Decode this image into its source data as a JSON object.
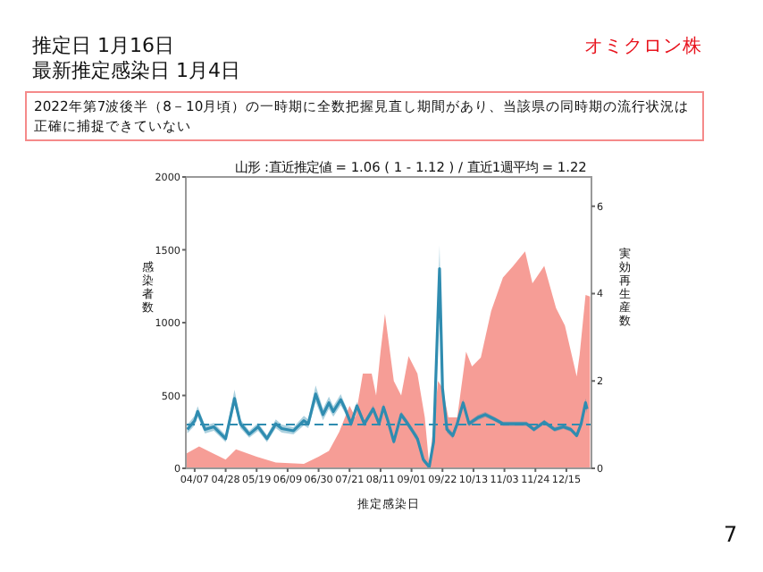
{
  "chart_data": {
    "type": "area",
    "title": "山形 :直近推定値 = 1.06 ( 1 - 1.12 ) / 直近1週平均 = 1.22",
    "xlabel": "推定感染日",
    "ylabel": "感染者数",
    "y2label": "実効再生産数",
    "annotations": [
      "推定日  1月16日",
      "最新推定感染日  1月4日",
      "オミクロン株",
      "2022年第7波後半（8－10月頃）の一時期に全数把握見直し期間があり、当該県の同時期の流行状況は正確に捕捉できていない",
      "7"
    ],
    "xlim": [
      "2022-04-01",
      "2023-01-01"
    ],
    "xticks": [
      {
        "value": "2022-04-07",
        "label": "04/07"
      },
      {
        "value": "2022-04-28",
        "label": "04/28"
      },
      {
        "value": "2022-05-19",
        "label": "05/19"
      },
      {
        "value": "2022-06-09",
        "label": "06/09"
      },
      {
        "value": "2022-06-30",
        "label": "06/30"
      },
      {
        "value": "2022-07-21",
        "label": "07/21"
      },
      {
        "value": "2022-08-11",
        "label": "08/11"
      },
      {
        "value": "2022-09-01",
        "label": "09/01"
      },
      {
        "value": "2022-09-22",
        "label": "09/22"
      },
      {
        "value": "2022-10-13",
        "label": "10/13"
      },
      {
        "value": "2022-11-03",
        "label": "11/03"
      },
      {
        "value": "2022-11-24",
        "label": "11/24"
      },
      {
        "value": "2022-12-15",
        "label": "12/15"
      }
    ],
    "ylim": [
      0,
      2000
    ],
    "yticks": [
      0,
      500,
      1000,
      1500,
      2000
    ],
    "y2lim": [
      0,
      6.67
    ],
    "y2ticks": [
      0,
      2,
      4,
      6
    ],
    "ref_lines": [
      {
        "axis": "y2",
        "value": 1,
        "color": "#2f8cb0",
        "line_style": "dashed"
      }
    ],
    "series": [
      {
        "color": "#f58c84",
        "x": [
          "2022-04-01",
          "2022-04-10",
          "2022-04-20",
          "2022-04-28",
          "2022-05-05",
          "2022-05-19",
          "2022-06-01",
          "2022-06-20",
          "2022-06-30",
          "2022-07-07",
          "2022-07-14",
          "2022-07-21",
          "2022-07-25",
          "2022-07-30",
          "2022-08-05",
          "2022-08-08",
          "2022-08-11",
          "2022-08-14",
          "2022-08-20",
          "2022-08-25",
          "2022-08-30",
          "2022-09-05",
          "2022-09-10",
          "2022-09-13",
          "2022-09-16",
          "2022-09-19",
          "2022-09-22",
          "2022-09-26",
          "2022-10-02",
          "2022-10-08",
          "2022-10-12",
          "2022-10-18",
          "2022-10-25",
          "2022-11-02",
          "2022-11-09",
          "2022-11-17",
          "2022-11-22",
          "2022-11-30",
          "2022-12-08",
          "2022-12-14",
          "2022-12-22",
          "2022-12-24",
          "2022-12-28",
          "2022-12-31"
        ],
        "values": [
          100,
          150,
          100,
          60,
          130,
          80,
          40,
          30,
          80,
          120,
          250,
          430,
          350,
          650,
          650,
          500,
          800,
          1060,
          600,
          500,
          770,
          650,
          350,
          20,
          300,
          600,
          550,
          350,
          350,
          800,
          700,
          760,
          1080,
          1310,
          1390,
          1490,
          1270,
          1390,
          1100,
          980,
          630,
          780,
          1190,
          1180
        ]
      },
      {
        "type": "line",
        "axis": "y2",
        "color": "#2f8cb0",
        "x": [
          "2022-04-02",
          "2022-04-07",
          "2022-04-09",
          "2022-04-14",
          "2022-04-20",
          "2022-04-28",
          "2022-05-04",
          "2022-05-08",
          "2022-05-14",
          "2022-05-20",
          "2022-05-26",
          "2022-06-01",
          "2022-06-05",
          "2022-06-13",
          "2022-06-20",
          "2022-06-23",
          "2022-06-28",
          "2022-07-03",
          "2022-07-07",
          "2022-07-10",
          "2022-07-15",
          "2022-07-18",
          "2022-07-22",
          "2022-07-26",
          "2022-07-31",
          "2022-08-06",
          "2022-08-10",
          "2022-08-13",
          "2022-08-16",
          "2022-08-20",
          "2022-08-25",
          "2022-08-28",
          "2022-09-01",
          "2022-09-05",
          "2022-09-09",
          "2022-09-13",
          "2022-09-16",
          "2022-09-20",
          "2022-09-22",
          "2022-09-25",
          "2022-09-29",
          "2022-10-02",
          "2022-10-06",
          "2022-10-10",
          "2022-10-16",
          "2022-10-21",
          "2022-10-27",
          "2022-11-02",
          "2022-11-10",
          "2022-11-18",
          "2022-11-23",
          "2022-11-30",
          "2022-12-07",
          "2022-12-13",
          "2022-12-18",
          "2022-12-22",
          "2022-12-25",
          "2022-12-28",
          "2022-12-29"
        ],
        "values": [
          0.89,
          1.09,
          1.3,
          0.89,
          0.95,
          0.68,
          1.6,
          1.02,
          0.78,
          0.95,
          0.68,
          1.02,
          0.91,
          0.86,
          1.09,
          1.02,
          1.7,
          1.23,
          1.5,
          1.3,
          1.57,
          1.36,
          1.02,
          1.43,
          1.02,
          1.36,
          1.02,
          1.4,
          1.09,
          0.61,
          1.23,
          1.09,
          0.89,
          0.68,
          0.2,
          0.03,
          0.61,
          4.57,
          1.84,
          0.89,
          0.75,
          1.02,
          1.5,
          1.02,
          1.16,
          1.23,
          1.13,
          1.02,
          1.02,
          1.02,
          0.89,
          1.06,
          0.89,
          0.95,
          0.89,
          0.75,
          1.02,
          1.5,
          1.36
        ],
        "lower": [
          0.8,
          0.98,
          1.18,
          0.8,
          0.86,
          0.6,
          1.45,
          0.92,
          0.7,
          0.86,
          0.6,
          0.92,
          0.82,
          0.78,
          0.98,
          0.92,
          1.52,
          1.1,
          1.36,
          1.18,
          1.44,
          1.26,
          0.94,
          1.34,
          0.95,
          1.28,
          0.95,
          1.32,
          1.02,
          0.55,
          1.16,
          1.02,
          0.82,
          0.6,
          0.14,
          0,
          0.5,
          4.2,
          1.7,
          0.82,
          0.68,
          0.95,
          1.42,
          0.96,
          1.1,
          1.17,
          1.08,
          0.97,
          0.97,
          0.97,
          0.84,
          1.01,
          0.84,
          0.9,
          0.84,
          0.7,
          0.96,
          1.4,
          1.26
        ],
        "upper": [
          1,
          1.2,
          1.42,
          0.98,
          1.04,
          0.76,
          1.8,
          1.12,
          0.86,
          1.04,
          0.76,
          1.12,
          1,
          0.94,
          1.2,
          1.12,
          1.9,
          1.36,
          1.64,
          1.42,
          1.7,
          1.46,
          1.1,
          1.52,
          1.09,
          1.44,
          1.09,
          1.48,
          1.16,
          0.67,
          1.3,
          1.16,
          0.96,
          0.76,
          0.26,
          0.08,
          0.72,
          5.1,
          2,
          0.96,
          0.82,
          1.09,
          1.58,
          1.08,
          1.22,
          1.29,
          1.18,
          1.07,
          1.07,
          1.07,
          0.94,
          1.11,
          0.94,
          1,
          0.94,
          0.8,
          1.08,
          1.6,
          1.46
        ]
      }
    ]
  }
}
